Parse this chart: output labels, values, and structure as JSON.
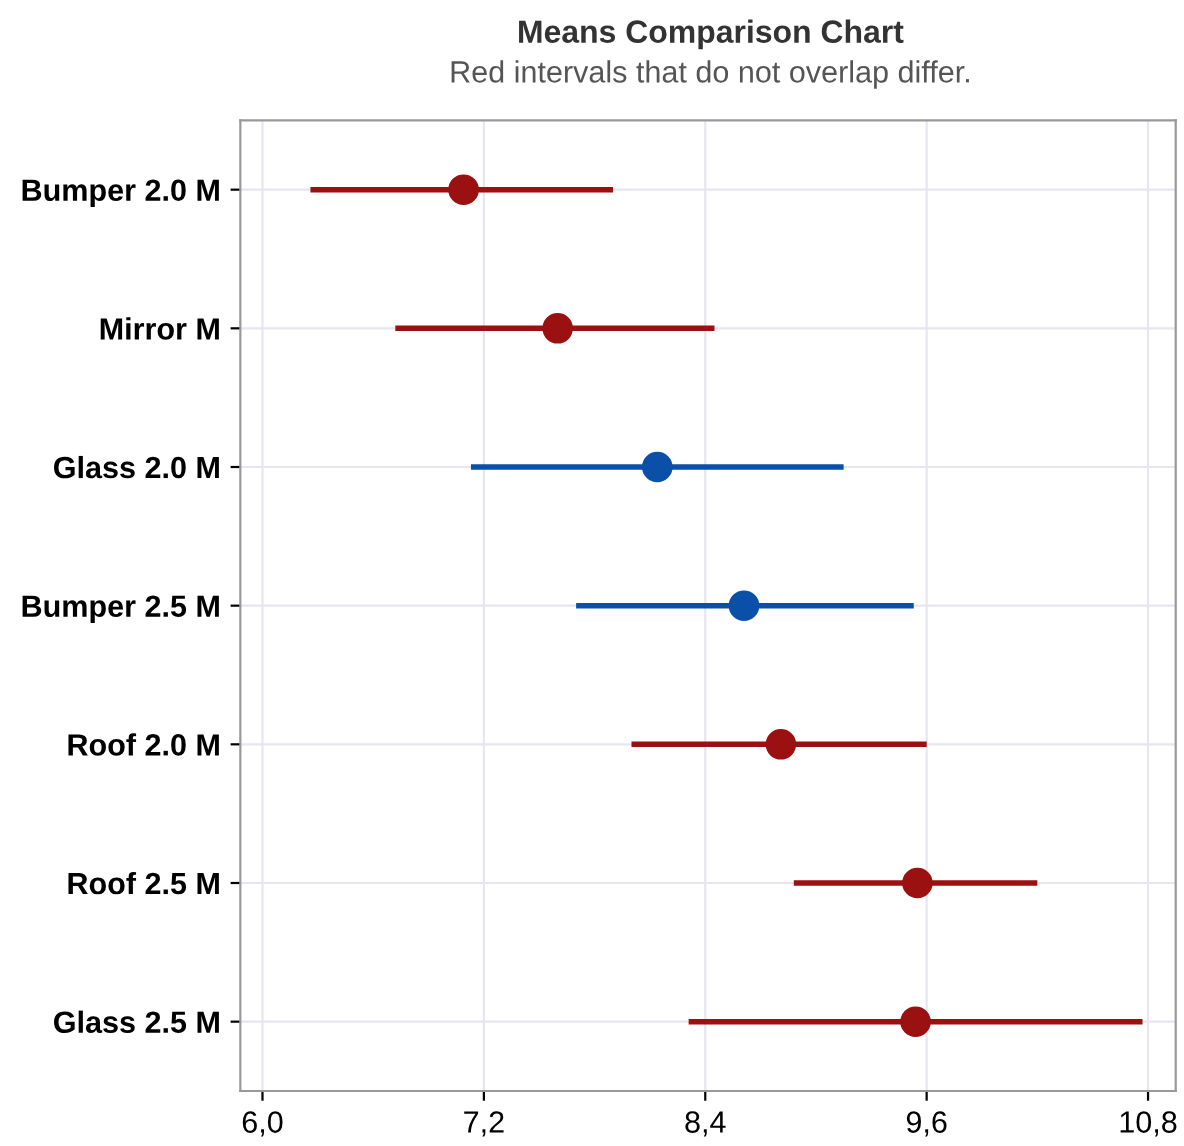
{
  "chart_data": {
    "type": "scatter",
    "title": "Means Comparison Chart",
    "subtitle": "Red intervals that do not overlap differ.",
    "orientation": "horizontal",
    "categories": [
      "Bumper 2.0 M",
      "Mirror M",
      "Glass 2.0 M",
      "Bumper 2.5 M",
      "Roof 2.0 M",
      "Roof 2.5 M",
      "Glass 2.5 M"
    ],
    "values": [
      7.09,
      7.6,
      8.14,
      8.61,
      8.81,
      9.55,
      9.54
    ],
    "errors": [
      [
        6.26,
        7.9
      ],
      [
        6.72,
        8.45
      ],
      [
        7.13,
        9.15
      ],
      [
        7.7,
        9.53
      ],
      [
        8.0,
        9.6
      ],
      [
        8.88,
        10.2
      ],
      [
        8.31,
        10.77
      ]
    ],
    "colors": [
      "#9b1010",
      "#9b1010",
      "#0a50a8",
      "#0a50a8",
      "#9b1010",
      "#9b1010",
      "#9b1010"
    ],
    "xlim": [
      5.88,
      10.95
    ],
    "xticks": [
      {
        "value": 6.0,
        "label": "6,0"
      },
      {
        "value": 7.2,
        "label": "7,2"
      },
      {
        "value": 8.4,
        "label": "8,4"
      },
      {
        "value": 9.6,
        "label": "9,6"
      },
      {
        "value": 10.8,
        "label": "10,8"
      }
    ],
    "grid": true,
    "marker": "circle"
  }
}
